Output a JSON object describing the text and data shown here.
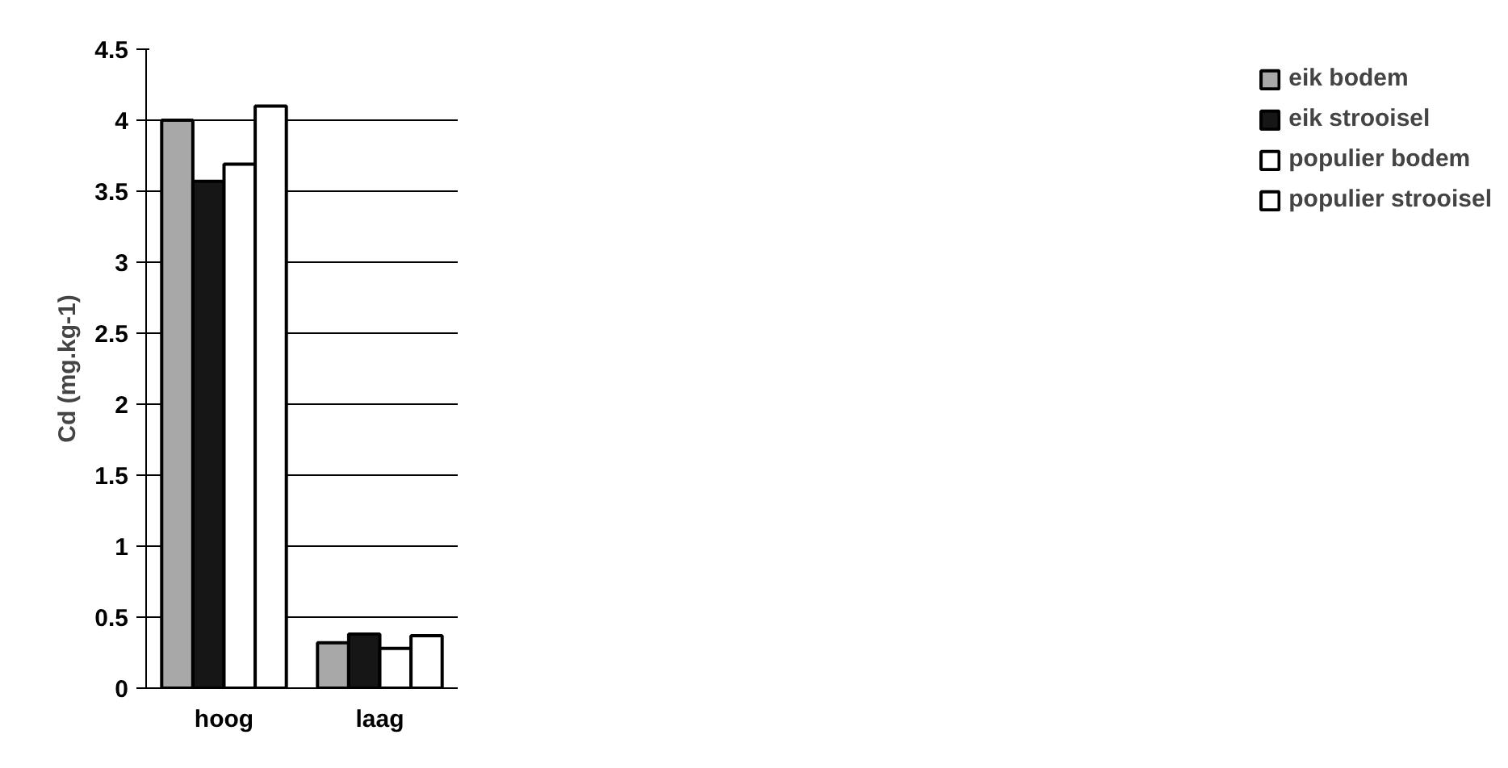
{
  "chart_data": {
    "type": "bar",
    "ylabel": "Cd (mg.kg-1)",
    "categories": [
      "hoog",
      "laag"
    ],
    "series": [
      {
        "name": "eik bodem",
        "color": "#a8a8a8",
        "values": [
          4.0,
          0.32
        ]
      },
      {
        "name": "eik strooisel",
        "color": "#161616",
        "values": [
          3.57,
          0.38
        ]
      },
      {
        "name": "populier bodem",
        "color": "#ffffff",
        "values": [
          3.69,
          0.28
        ]
      },
      {
        "name": "populier strooisel",
        "color": "#ffffff",
        "values": [
          4.1,
          0.37
        ]
      }
    ],
    "ylim": [
      0,
      4.5
    ],
    "yticks": [
      0,
      0.5,
      1,
      1.5,
      2,
      2.5,
      3,
      3.5,
      4,
      4.5
    ],
    "grid": "y",
    "legend": "right"
  }
}
